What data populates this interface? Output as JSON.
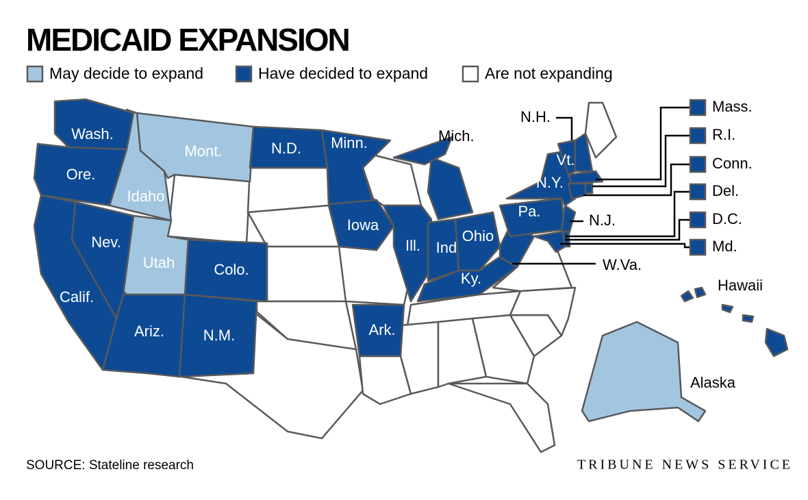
{
  "title": "MEDICAID EXPANSION",
  "legend": [
    {
      "label": "May decide to expand",
      "color": "#a3c6e0",
      "states": [
        "Mont.",
        "Idaho",
        "Utah",
        "Alaska"
      ]
    },
    {
      "label": "Have decided to expand",
      "color": "#0d4a93",
      "states": [
        "Wash.",
        "Ore.",
        "Calif.",
        "Nev.",
        "Ariz.",
        "N.M.",
        "Colo.",
        "N.D.",
        "Minn.",
        "Iowa",
        "Ark.",
        "Ill.",
        "Ind.",
        "Ohio",
        "Ky.",
        "Mich.",
        "W.Va.",
        "Pa.",
        "N.Y.",
        "N.J.",
        "Vt.",
        "N.H.",
        "Mass.",
        "R.I.",
        "Conn.",
        "Del.",
        "D.C.",
        "Md.",
        "Hawaii"
      ]
    },
    {
      "label": "Are not expanding",
      "color": "#ffffff"
    }
  ],
  "source": "SOURCE: Stateline research",
  "credit": "TRIBUNE NEWS SERVICE"
}
